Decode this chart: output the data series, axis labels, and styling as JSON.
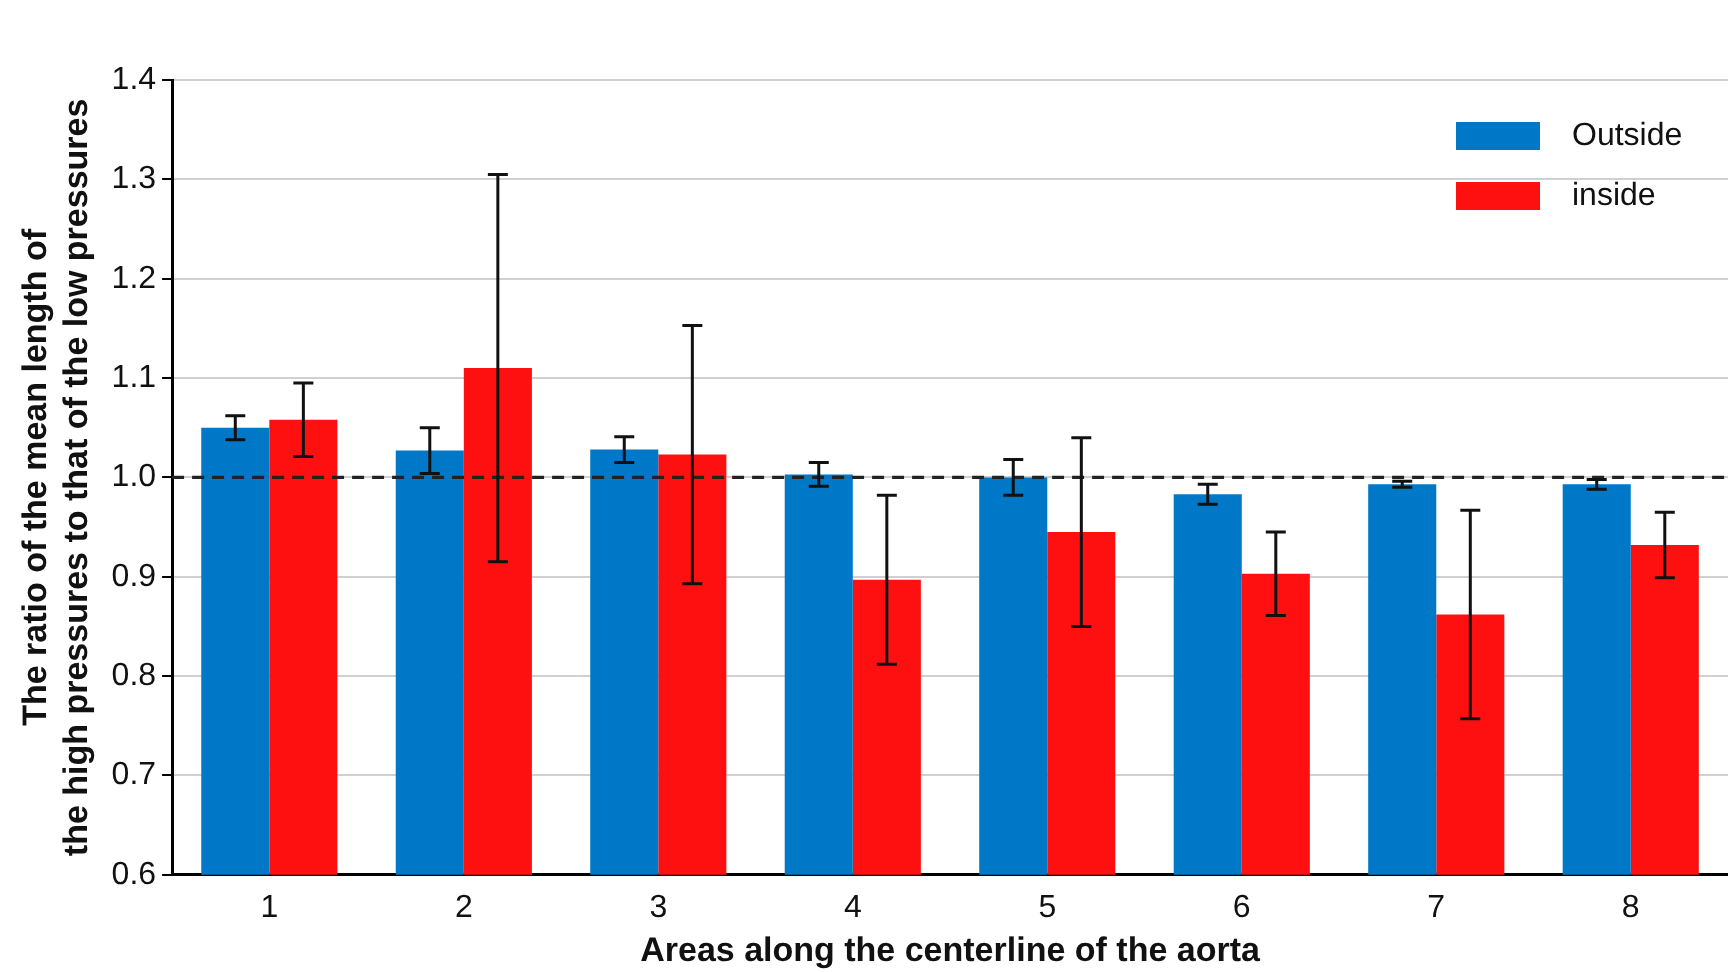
{
  "chart_data": {
    "type": "bar",
    "xlabel": "Areas along the centerline of the aorta",
    "ylabel": "The ratio of the mean length of\nthe high pressures to that of the low pressures",
    "categories": [
      "1",
      "2",
      "3",
      "4",
      "5",
      "6",
      "7",
      "8"
    ],
    "series": [
      {
        "name": "Outside",
        "color": "#0078c8",
        "values": [
          1.05,
          1.027,
          1.028,
          1.003,
          1.0,
          0.983,
          0.993,
          0.993
        ],
        "errors": [
          0.012,
          0.023,
          0.013,
          0.012,
          0.018,
          0.01,
          0.003,
          0.005
        ]
      },
      {
        "name": "inside",
        "color": "#ff1010",
        "values": [
          1.058,
          1.11,
          1.023,
          0.897,
          0.945,
          0.903,
          0.862,
          0.932
        ],
        "errors": [
          0.037,
          0.195,
          0.13,
          0.085,
          0.095,
          0.042,
          0.105,
          0.033
        ]
      }
    ],
    "ylim": [
      0.6,
      1.4
    ],
    "yticks": [
      {
        "value": 0.6,
        "label": "0.6"
      },
      {
        "value": 0.7,
        "label": "0.7"
      },
      {
        "value": 0.8,
        "label": "0.8"
      },
      {
        "value": 0.9,
        "label": "0.9"
      },
      {
        "value": 1,
        "label": "1.0"
      },
      {
        "value": 1.1,
        "label": "1.1"
      },
      {
        "value": 1.2,
        "label": "1.2"
      },
      {
        "value": 1.3,
        "label": "1.3"
      },
      {
        "value": 1.4,
        "label": "1.4"
      }
    ],
    "grid": "y",
    "legend": "top right",
    "ref_lines": [
      {
        "axis": "y",
        "value": 1.0,
        "color": "#222222",
        "line_style": "dashed"
      }
    ]
  }
}
